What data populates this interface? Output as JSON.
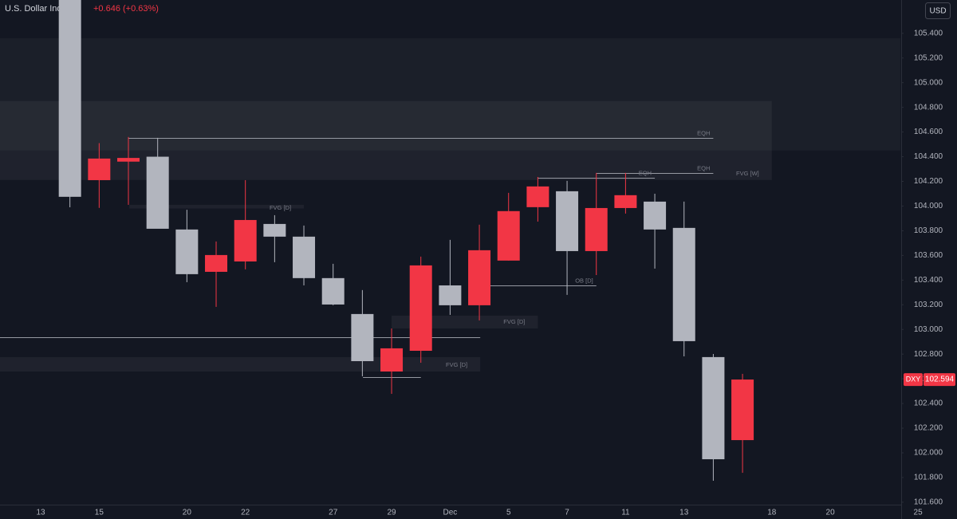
{
  "chart_data": {
    "type": "candlestick",
    "title": "U.S. Dollar Index",
    "change": "+0.646 (+0.63%)",
    "currency": "USD",
    "symbol": "DXY",
    "categories": [
      "13",
      null,
      "15",
      null,
      null,
      "20",
      null,
      "22",
      null,
      null,
      "27",
      null,
      "29",
      null,
      "Dec",
      null,
      "5",
      null,
      "7",
      null,
      "11",
      null,
      "13",
      null,
      null,
      "18",
      null,
      "20",
      null,
      null,
      "25"
    ],
    "open": [
      null,
      105.7,
      104.21,
      104.36,
      104.4,
      103.81,
      103.467,
      103.551,
      103.855,
      103.752,
      103.416,
      103.125,
      102.659,
      102.827,
      103.357,
      103.196,
      103.558,
      103.991,
      104.12,
      103.635,
      103.984,
      104.036,
      103.823,
      102.776,
      102.103,
      null,
      null,
      null,
      null,
      null,
      null
    ],
    "high": [
      null,
      105.75,
      104.51,
      104.56,
      104.553,
      103.97,
      103.713,
      104.21,
      103.926,
      103.842,
      103.532,
      103.319,
      103.008,
      103.59,
      103.726,
      103.849,
      104.107,
      104.236,
      104.204,
      104.269,
      104.269,
      104.1,
      104.036,
      102.801,
      102.64,
      null,
      null,
      null,
      null,
      null,
      null
    ],
    "low": [
      null,
      103.99,
      103.985,
      104.01,
      103.82,
      103.383,
      103.183,
      103.487,
      103.545,
      103.357,
      103.196,
      102.62,
      102.478,
      102.73,
      103.118,
      103.073,
      103.558,
      103.874,
      103.28,
      103.441,
      103.939,
      103.493,
      102.782,
      101.774,
      101.838,
      null,
      null,
      null,
      null,
      null,
      null
    ],
    "close": [
      null,
      104.075,
      104.385,
      104.39,
      103.816,
      103.448,
      103.603,
      103.887,
      103.752,
      103.416,
      103.202,
      102.743,
      102.847,
      103.519,
      103.196,
      103.642,
      103.959,
      104.159,
      103.635,
      103.984,
      104.088,
      103.81,
      102.905,
      101.948,
      102.594,
      null,
      null,
      null,
      null,
      null,
      null
    ],
    "up_color": "#f23645",
    "down_color": "#b2b5be",
    "ylim": [
      101.58,
      105.67
    ],
    "yticks": [
      {
        "value": 101.6,
        "label": "101.600"
      },
      {
        "value": 101.8,
        "label": "101.800"
      },
      {
        "value": 102.0,
        "label": "102.000"
      },
      {
        "value": 102.2,
        "label": "102.200"
      },
      {
        "value": 102.4,
        "label": "102.400"
      },
      {
        "value": 102.6,
        "label": "102.600"
      },
      {
        "value": 102.8,
        "label": "102.800"
      },
      {
        "value": 103.0,
        "label": "103.000"
      },
      {
        "value": 103.2,
        "label": "103.200"
      },
      {
        "value": 103.4,
        "label": "103.400"
      },
      {
        "value": 103.6,
        "label": "103.600"
      },
      {
        "value": 103.8,
        "label": "103.800"
      },
      {
        "value": 104.0,
        "label": "104.000"
      },
      {
        "value": 104.2,
        "label": "104.200"
      },
      {
        "value": 104.4,
        "label": "104.400"
      },
      {
        "value": 104.6,
        "label": "104.600"
      },
      {
        "value": 104.8,
        "label": "104.800"
      },
      {
        "value": 105.0,
        "label": "105.000"
      },
      {
        "value": 105.2,
        "label": "105.200"
      },
      {
        "value": 105.4,
        "label": "105.400"
      }
    ],
    "grid": false,
    "zones": [
      {
        "range": [
          104.45,
          105.36
        ],
        "x": [
          -1.4,
          29.4
        ]
      },
      {
        "label": "FVG [W]",
        "range": [
          104.211,
          104.851
        ],
        "x": [
          -1.4,
          25.0
        ]
      },
      {
        "label": "FVG [D]",
        "range": [
          103.98,
          104.01
        ],
        "x": [
          3.03,
          9.0
        ]
      },
      {
        "label": "FVG [D]",
        "range": [
          103.008,
          103.112
        ],
        "x": [
          12.0,
          17.0
        ]
      },
      {
        "label": "FVG [D]",
        "range": [
          102.659,
          102.776
        ],
        "x": [
          -1.4,
          15.03
        ]
      }
    ],
    "levels": [
      {
        "label": "EQH",
        "y": 104.553,
        "x": [
          3.0,
          23.0
        ]
      },
      {
        "label": "EQH",
        "y": 104.269,
        "x": [
          19.0,
          23.0
        ]
      },
      {
        "label": "EQH",
        "y": 104.23,
        "x": [
          17.0,
          21.0
        ]
      },
      {
        "label": "OB [D]",
        "y": 103.357,
        "x": [
          15.0,
          19.0
        ]
      },
      {
        "y": 102.937,
        "x": [
          -1.4,
          15.03
        ]
      },
      {
        "y": 102.614,
        "x": [
          11.02,
          13.0
        ]
      }
    ]
  }
}
